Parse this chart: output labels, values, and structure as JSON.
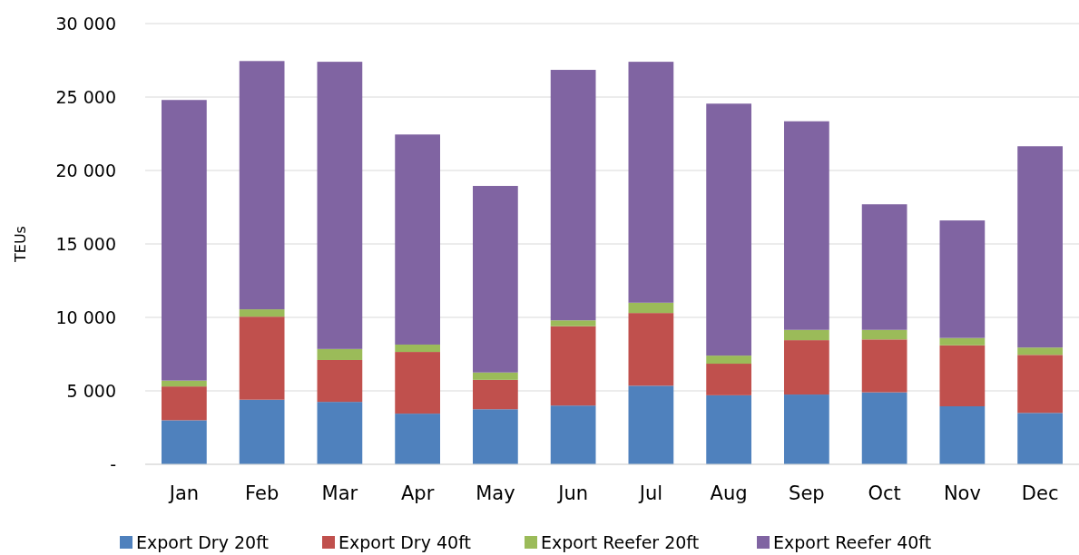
{
  "chart_data": {
    "type": "bar",
    "stacked": true,
    "ylabel": "TEUs",
    "categories": [
      "Jan",
      "Feb",
      "Mar",
      "Apr",
      "May",
      "Jun",
      "Jul",
      "Aug",
      "Sep",
      "Oct",
      "Nov",
      "Dec"
    ],
    "series": [
      {
        "name": "Export Dry 20ft",
        "color": "#4f81bd",
        "values": [
          3000,
          4400,
          4250,
          3450,
          3750,
          4000,
          5350,
          4700,
          4750,
          4900,
          3950,
          3500
        ]
      },
      {
        "name": "Export Dry 40ft",
        "color": "#c0504d",
        "values": [
          2300,
          5650,
          2850,
          4200,
          2000,
          5400,
          4950,
          2150,
          3700,
          3600,
          4150,
          3950
        ]
      },
      {
        "name": "Export Reefer 20ft",
        "color": "#9bbb59",
        "values": [
          400,
          500,
          750,
          500,
          500,
          400,
          700,
          550,
          700,
          650,
          500,
          500
        ]
      },
      {
        "name": "Export Reefer 40ft",
        "color": "#8064a2",
        "values": [
          19100,
          16900,
          19550,
          14300,
          12700,
          17050,
          16400,
          17150,
          14200,
          8550,
          8000,
          13700
        ]
      }
    ],
    "ylim": [
      0,
      30000
    ],
    "yticks": [
      {
        "value": 0,
        "label": "-"
      },
      {
        "value": 5000,
        "label": "5 000"
      },
      {
        "value": 10000,
        "label": "10 000"
      },
      {
        "value": 15000,
        "label": "15 000"
      },
      {
        "value": 20000,
        "label": "20 000"
      },
      {
        "value": 25000,
        "label": "25 000"
      },
      {
        "value": 30000,
        "label": "30 000"
      }
    ],
    "grid": "y",
    "legend": "bottom"
  }
}
